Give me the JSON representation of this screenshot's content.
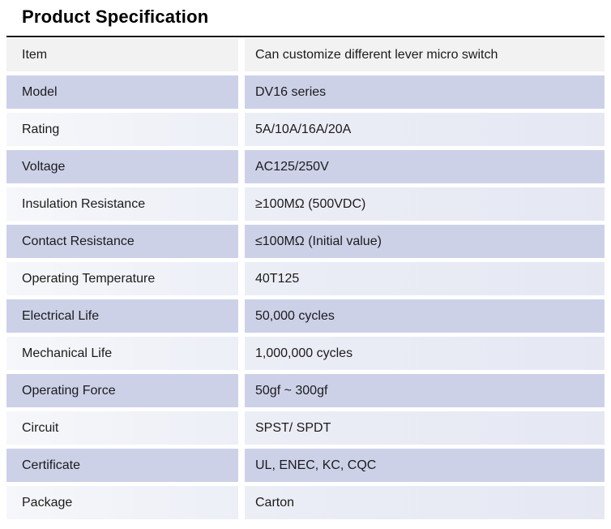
{
  "page": {
    "title": "Product Specification"
  },
  "spec_table": {
    "header": {
      "item": "Item",
      "value": "Can customize different lever micro switch"
    },
    "rows": [
      {
        "item": "Model",
        "value": "DV16 series"
      },
      {
        "item": "Rating",
        "value": "5A/10A/16A/20A"
      },
      {
        "item": "Voltage",
        "value": "AC125/250V"
      },
      {
        "item": "Insulation Resistance",
        "value": "≥100MΩ (500VDC)"
      },
      {
        "item": "Contact Resistance",
        "value": "≤100MΩ (Initial value)"
      },
      {
        "item": "Operating Temperature",
        "value": "40T125"
      },
      {
        "item": "Electrical Life",
        "value": "50,000 cycles"
      },
      {
        "item": "Mechanical Life",
        "value": "1,000,000 cycles"
      },
      {
        "item": "Operating Force",
        "value": "50gf ~ 300gf"
      },
      {
        "item": "Circuit",
        "value": "SPST/ SPDT"
      },
      {
        "item": "Certificate",
        "value": "UL, ENEC, KC, CQC"
      },
      {
        "item": "Package",
        "value": "Carton"
      }
    ],
    "colors": {
      "title": "#000000",
      "text": "#1b1b1b",
      "border_top": "#181818",
      "header_row_bg": "#f2f2f2",
      "dark_row_bg": "#cdd1e8",
      "light_row_left": "#f6f7fa",
      "light_row_right": "#e5e8f3"
    }
  }
}
